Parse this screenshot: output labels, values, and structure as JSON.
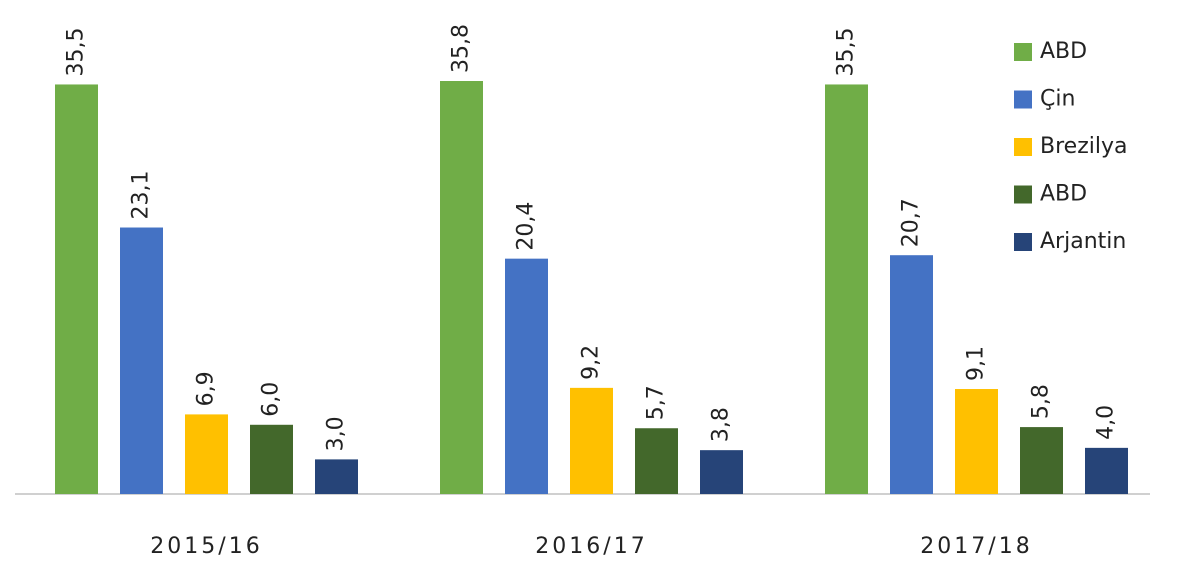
{
  "chart_data": {
    "type": "bar",
    "categories": [
      "2015/16",
      "2016/17",
      "2017/18"
    ],
    "series": [
      {
        "name": "ABD",
        "color": "#70ad47",
        "values": [
          35.5,
          35.8,
          35.5
        ],
        "value_labels": [
          "35,5",
          "35,8",
          "35,5"
        ]
      },
      {
        "name": "Çin",
        "color": "#4472c4",
        "values": [
          23.1,
          20.4,
          20.7
        ],
        "value_labels": [
          "23,1",
          "20,4",
          "20,7"
        ]
      },
      {
        "name": "Brezilya",
        "color": "#ffc000",
        "values": [
          6.9,
          9.2,
          9.1
        ],
        "value_labels": [
          "6,9",
          "9,2",
          "9,1"
        ]
      },
      {
        "name": "ABD",
        "color": "#43682b",
        "values": [
          6.0,
          5.7,
          5.8
        ],
        "value_labels": [
          "6,0",
          "5,7",
          "5,8"
        ]
      },
      {
        "name": "Arjantin",
        "color": "#264478",
        "values": [
          3.0,
          3.8,
          4.0
        ],
        "value_labels": [
          "3,0",
          "3,8",
          "4,0"
        ]
      }
    ],
    "legend": "top-right"
  }
}
